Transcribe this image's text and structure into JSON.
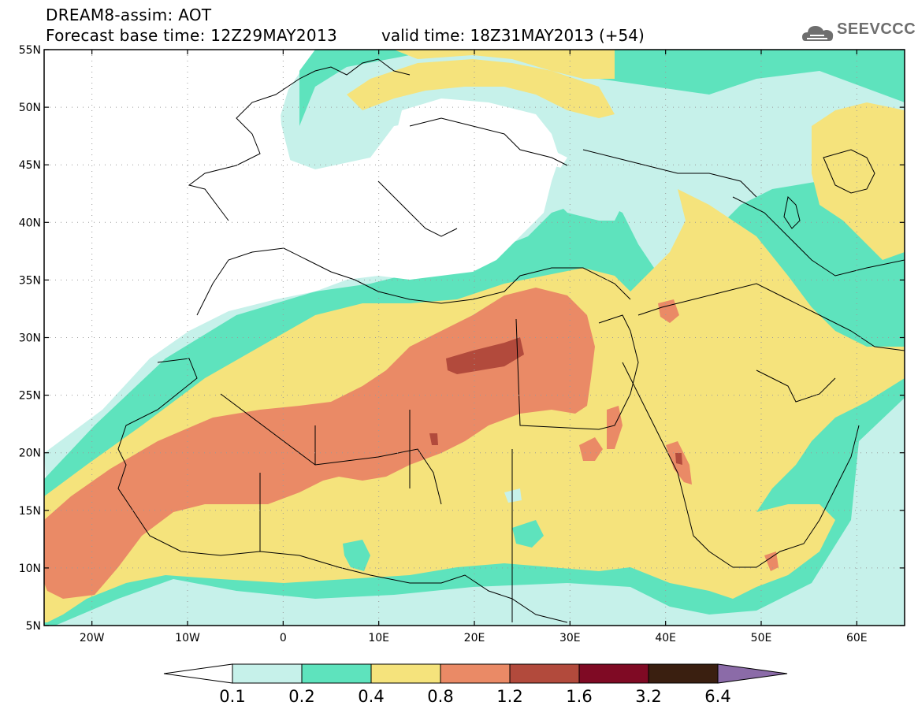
{
  "header": {
    "title": "DREAM8-assim: AOT",
    "base_time": "Forecast base time: 12Z29MAY2013",
    "valid_time": "valid time: 18Z31MAY2013 (+54)",
    "logo_text": "SEEVCCC"
  },
  "map": {
    "lon_range": [
      -25,
      65
    ],
    "lat_range": [
      5,
      55
    ],
    "lat_ticks": [
      {
        "value": 55,
        "label": "55N"
      },
      {
        "value": 50,
        "label": "50N"
      },
      {
        "value": 45,
        "label": "45N"
      },
      {
        "value": 40,
        "label": "40N"
      },
      {
        "value": 35,
        "label": "35N"
      },
      {
        "value": 30,
        "label": "30N"
      },
      {
        "value": 25,
        "label": "25N"
      },
      {
        "value": 20,
        "label": "20N"
      },
      {
        "value": 15,
        "label": "15N"
      },
      {
        "value": 10,
        "label": "10N"
      },
      {
        "value": 5,
        "label": "5N"
      }
    ],
    "lon_ticks": [
      {
        "value": -20,
        "label": "20W"
      },
      {
        "value": -10,
        "label": "10W"
      },
      {
        "value": 0,
        "label": "0"
      },
      {
        "value": 10,
        "label": "10E"
      },
      {
        "value": 20,
        "label": "20E"
      },
      {
        "value": 30,
        "label": "30E"
      },
      {
        "value": 40,
        "label": "40E"
      },
      {
        "value": 50,
        "label": "50E"
      },
      {
        "value": 60,
        "label": "60E"
      }
    ],
    "colors": {
      "c01": "#c6f1ea",
      "c02": "#5ee3bd",
      "c04": "#f5e37c",
      "c08": "#ea8a66",
      "c12": "#b24a3c",
      "c16": "#7f0a24",
      "c32": "#3a1f10",
      "c64": "#8b6ba8",
      "border": "#000000",
      "grid": "#9a9a9a"
    }
  },
  "colorbar": {
    "colors": [
      "#c6f1ea",
      "#5ee3bd",
      "#f5e37c",
      "#ea8a66",
      "#b24a3c",
      "#7f0a24",
      "#3a1f10"
    ],
    "under_color": "#ffffff",
    "over_color": "#8b6ba8",
    "labels": [
      "0.1",
      "0.2",
      "0.4",
      "0.8",
      "1.2",
      "1.6",
      "3.2",
      "6.4"
    ]
  }
}
